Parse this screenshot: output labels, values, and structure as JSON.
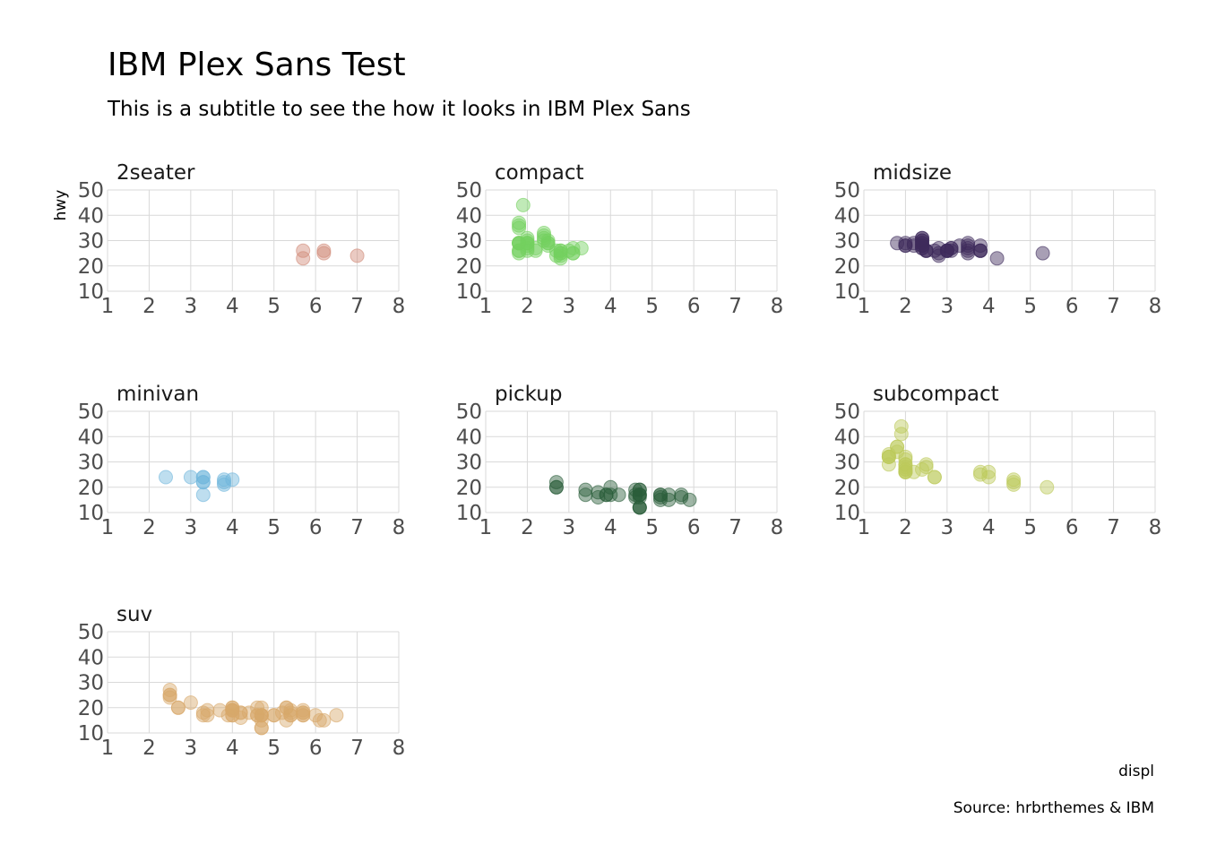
{
  "title": "IBM Plex Sans Test",
  "subtitle": "This is a subtitle to see the how it looks in IBM Plex Sans",
  "caption": "Source: hrbrthemes & IBM",
  "chart_data": {
    "type": "scatter",
    "facet": true,
    "xlabel": "displ",
    "ylabel": "hwy",
    "xlim": [
      1,
      8
    ],
    "ylim": [
      10,
      50
    ],
    "xticks": [
      1,
      2,
      3,
      4,
      5,
      6,
      7,
      8
    ],
    "yticks": [
      10,
      20,
      30,
      40,
      50
    ],
    "grid": true,
    "point_opacity": 0.45,
    "panels": [
      {
        "name": "2seater",
        "color": "#d08a78",
        "points": [
          [
            5.7,
            26
          ],
          [
            5.7,
            23
          ],
          [
            6.2,
            26
          ],
          [
            6.2,
            25
          ],
          [
            7.0,
            24
          ]
        ]
      },
      {
        "name": "compact",
        "color": "#74d05f",
        "points": [
          [
            1.8,
            29
          ],
          [
            1.8,
            29
          ],
          [
            2.0,
            31
          ],
          [
            2.0,
            30
          ],
          [
            2.8,
            26
          ],
          [
            2.8,
            26
          ],
          [
            3.1,
            27
          ],
          [
            1.8,
            26
          ],
          [
            1.8,
            25
          ],
          [
            2.0,
            28
          ],
          [
            2.0,
            29
          ],
          [
            2.8,
            25
          ],
          [
            2.8,
            25
          ],
          [
            3.1,
            25
          ],
          [
            3.1,
            25
          ],
          [
            2.2,
            26
          ],
          [
            2.2,
            27
          ],
          [
            2.4,
            30
          ],
          [
            2.4,
            33
          ],
          [
            3.0,
            26
          ],
          [
            3.3,
            27
          ],
          [
            1.8,
            29
          ],
          [
            1.8,
            26
          ],
          [
            1.8,
            29
          ],
          [
            1.8,
            36
          ],
          [
            1.8,
            37
          ],
          [
            1.9,
            44
          ],
          [
            2.0,
            29
          ],
          [
            2.0,
            26
          ],
          [
            2.0,
            29
          ],
          [
            2.5,
            29
          ],
          [
            2.5,
            29
          ],
          [
            2.8,
            23
          ],
          [
            2.8,
            24
          ],
          [
            1.8,
            35
          ],
          [
            2.0,
            27
          ],
          [
            2.4,
            31
          ],
          [
            2.4,
            32
          ],
          [
            2.5,
            28
          ],
          [
            2.5,
            30
          ],
          [
            2.7,
            24
          ],
          [
            2.7,
            26
          ]
        ]
      },
      {
        "name": "midsize",
        "color": "#3d2b5c",
        "points": [
          [
            1.8,
            29
          ],
          [
            2.0,
            28
          ],
          [
            2.4,
            29
          ],
          [
            2.4,
            29
          ],
          [
            2.8,
            27
          ],
          [
            2.8,
            25
          ],
          [
            3.1,
            27
          ],
          [
            3.1,
            27
          ],
          [
            3.8,
            26
          ],
          [
            3.8,
            26
          ],
          [
            3.8,
            26
          ],
          [
            5.3,
            25
          ],
          [
            2.4,
            27
          ],
          [
            2.4,
            30
          ],
          [
            2.4,
            31
          ],
          [
            2.4,
            31
          ],
          [
            3.0,
            26
          ],
          [
            3.0,
            26
          ],
          [
            3.3,
            28
          ],
          [
            3.5,
            28
          ],
          [
            3.5,
            29
          ],
          [
            3.8,
            28
          ],
          [
            4.2,
            23
          ],
          [
            2.5,
            26
          ],
          [
            2.5,
            26
          ],
          [
            3.5,
            25
          ],
          [
            3.5,
            27
          ],
          [
            3.0,
            26
          ],
          [
            3.0,
            26
          ],
          [
            3.5,
            26
          ],
          [
            2.8,
            24
          ],
          [
            2.0,
            28
          ],
          [
            2.0,
            29
          ],
          [
            2.4,
            27
          ],
          [
            2.4,
            28
          ],
          [
            3.1,
            26
          ],
          [
            2.5,
            26
          ],
          [
            2.2,
            28
          ],
          [
            2.2,
            29
          ],
          [
            2.4,
            30
          ],
          [
            2.4,
            28
          ],
          [
            2.7,
            26
          ]
        ]
      },
      {
        "name": "minivan",
        "color": "#6fb6dc",
        "points": [
          [
            2.4,
            24
          ],
          [
            3.0,
            24
          ],
          [
            3.3,
            22
          ],
          [
            3.3,
            22
          ],
          [
            3.3,
            24
          ],
          [
            3.3,
            24
          ],
          [
            3.3,
            17
          ],
          [
            3.8,
            22
          ],
          [
            3.8,
            21
          ],
          [
            3.8,
            23
          ],
          [
            4.0,
            23
          ]
        ]
      },
      {
        "name": "pickup",
        "color": "#2a5e3a",
        "points": [
          [
            2.7,
            20
          ],
          [
            2.7,
            20
          ],
          [
            2.7,
            22
          ],
          [
            3.4,
            17
          ],
          [
            3.4,
            19
          ],
          [
            3.7,
            18
          ],
          [
            3.7,
            16
          ],
          [
            3.9,
            17
          ],
          [
            3.9,
            17
          ],
          [
            4.7,
            19
          ],
          [
            4.7,
            19
          ],
          [
            4.7,
            12
          ],
          [
            4.7,
            17
          ],
          [
            5.2,
            17
          ],
          [
            5.2,
            17
          ],
          [
            5.7,
            16
          ],
          [
            5.9,
            15
          ],
          [
            4.7,
            17
          ],
          [
            4.7,
            12
          ],
          [
            4.7,
            17
          ],
          [
            4.7,
            16
          ],
          [
            4.7,
            12
          ],
          [
            5.2,
            15
          ],
          [
            5.2,
            16
          ],
          [
            5.7,
            17
          ],
          [
            4.0,
            20
          ],
          [
            4.0,
            17
          ],
          [
            4.6,
            17
          ],
          [
            5.4,
            15
          ],
          [
            5.4,
            17
          ],
          [
            4.2,
            17
          ],
          [
            4.6,
            16
          ],
          [
            4.6,
            19
          ]
        ]
      },
      {
        "name": "subcompact",
        "color": "#bcc95a",
        "points": [
          [
            2.0,
            29
          ],
          [
            2.0,
            27
          ],
          [
            2.0,
            31
          ],
          [
            2.0,
            32
          ],
          [
            2.0,
            27
          ],
          [
            2.0,
            26
          ],
          [
            2.0,
            26
          ],
          [
            2.0,
            28
          ],
          [
            2.0,
            26
          ],
          [
            2.7,
            24
          ],
          [
            3.8,
            26
          ],
          [
            3.8,
            25
          ],
          [
            4.0,
            26
          ],
          [
            4.6,
            23
          ],
          [
            4.6,
            21
          ],
          [
            4.6,
            22
          ],
          [
            5.4,
            20
          ],
          [
            1.6,
            33
          ],
          [
            1.6,
            32
          ],
          [
            1.6,
            32
          ],
          [
            1.6,
            29
          ],
          [
            1.6,
            32
          ],
          [
            1.8,
            34
          ],
          [
            1.8,
            36
          ],
          [
            1.8,
            36
          ],
          [
            1.9,
            44
          ],
          [
            1.9,
            41
          ],
          [
            2.0,
            29
          ],
          [
            2.2,
            26
          ],
          [
            2.5,
            28
          ],
          [
            2.5,
            29
          ],
          [
            2.4,
            27
          ],
          [
            2.7,
            24
          ],
          [
            4.0,
            24
          ]
        ]
      },
      {
        "name": "suv",
        "color": "#d8a96a",
        "points": [
          [
            5.3,
            20
          ],
          [
            5.3,
            15
          ],
          [
            5.3,
            20
          ],
          [
            5.7,
            17
          ],
          [
            6.0,
            17
          ],
          [
            5.7,
            18
          ],
          [
            6.5,
            17
          ],
          [
            6.1,
            15
          ],
          [
            4.0,
            19
          ],
          [
            4.0,
            17
          ],
          [
            4.7,
            17
          ],
          [
            4.7,
            17
          ],
          [
            5.7,
            17
          ],
          [
            4.0,
            19
          ],
          [
            4.7,
            15
          ],
          [
            4.7,
            17
          ],
          [
            4.7,
            12
          ],
          [
            5.7,
            18
          ],
          [
            2.5,
            25
          ],
          [
            2.5,
            24
          ],
          [
            2.5,
            27
          ],
          [
            2.5,
            25
          ],
          [
            2.7,
            20
          ],
          [
            2.7,
            20
          ],
          [
            3.3,
            17
          ],
          [
            3.4,
            19
          ],
          [
            3.4,
            17
          ],
          [
            4.0,
            20
          ],
          [
            4.2,
            18
          ],
          [
            4.2,
            18
          ],
          [
            4.6,
            17
          ],
          [
            5.4,
            19
          ],
          [
            5.4,
            17
          ],
          [
            4.6,
            17
          ],
          [
            4.6,
            20
          ],
          [
            4.7,
            20
          ],
          [
            5.4,
            17
          ],
          [
            5.0,
            17
          ],
          [
            4.0,
            17
          ],
          [
            4.0,
            19
          ],
          [
            4.0,
            20
          ],
          [
            3.7,
            19
          ],
          [
            3.0,
            22
          ],
          [
            3.3,
            18
          ],
          [
            3.9,
            17
          ],
          [
            4.0,
            19
          ],
          [
            4.4,
            18
          ],
          [
            4.7,
            12
          ],
          [
            4.7,
            17
          ],
          [
            5.2,
            18
          ],
          [
            5.0,
            17
          ],
          [
            5.4,
            18
          ],
          [
            5.7,
            19
          ],
          [
            6.2,
            15
          ],
          [
            4.2,
            16
          ]
        ]
      }
    ]
  }
}
